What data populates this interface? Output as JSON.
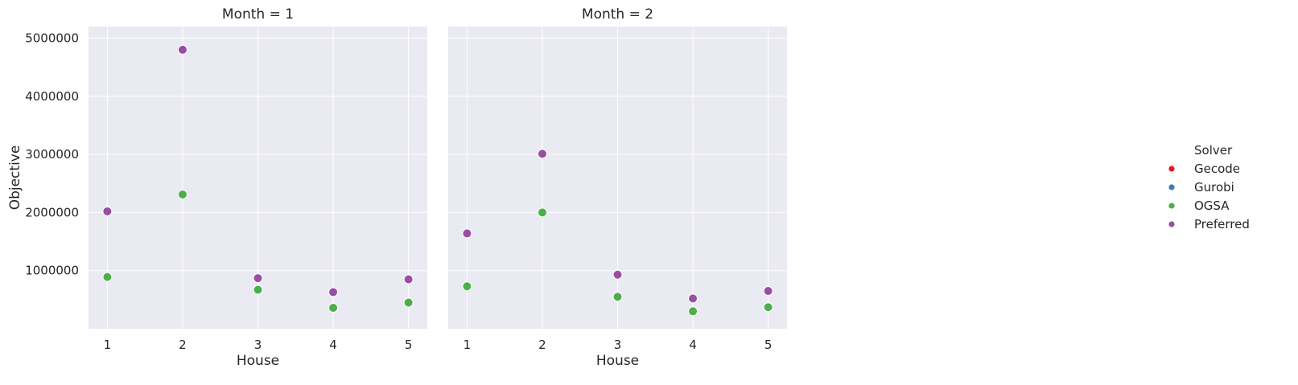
{
  "chart_data": {
    "type": "scatter",
    "facet_variable": "Month",
    "panels": [
      {
        "title": "Month = 1",
        "month": 1
      },
      {
        "title": "Month = 2",
        "month": 2
      }
    ],
    "x": [
      1,
      2,
      3,
      4,
      5
    ],
    "xlabel": "House",
    "ylabel": "Objective",
    "xlim": [
      0.75,
      5.25
    ],
    "ylim": [
      0,
      5200000
    ],
    "yticks": [
      1000000,
      2000000,
      3000000,
      4000000,
      5000000
    ],
    "ytick_labels": [
      "1000000",
      "2000000",
      "3000000",
      "4000000",
      "5000000"
    ],
    "grid": true,
    "legend": {
      "title": "Solver",
      "placement": "center-right",
      "entries": [
        {
          "name": "Gecode",
          "color": "#e41a1c"
        },
        {
          "name": "Gurobi",
          "color": "#377eb8"
        },
        {
          "name": "OGSA",
          "color": "#4daf4a"
        },
        {
          "name": "Preferred",
          "color": "#984ea3"
        }
      ]
    },
    "series": [
      {
        "name": "OGSA",
        "color": "#4daf4a",
        "month": 1,
        "values": [
          890000,
          2310000,
          670000,
          360000,
          450000
        ]
      },
      {
        "name": "Preferred",
        "color": "#984ea3",
        "month": 1,
        "values": [
          2020000,
          4800000,
          870000,
          630000,
          850000
        ]
      },
      {
        "name": "OGSA",
        "color": "#4daf4a",
        "month": 2,
        "values": [
          730000,
          2000000,
          550000,
          300000,
          370000
        ]
      },
      {
        "name": "Preferred",
        "color": "#984ea3",
        "month": 2,
        "values": [
          1640000,
          3010000,
          930000,
          520000,
          650000
        ]
      }
    ]
  }
}
